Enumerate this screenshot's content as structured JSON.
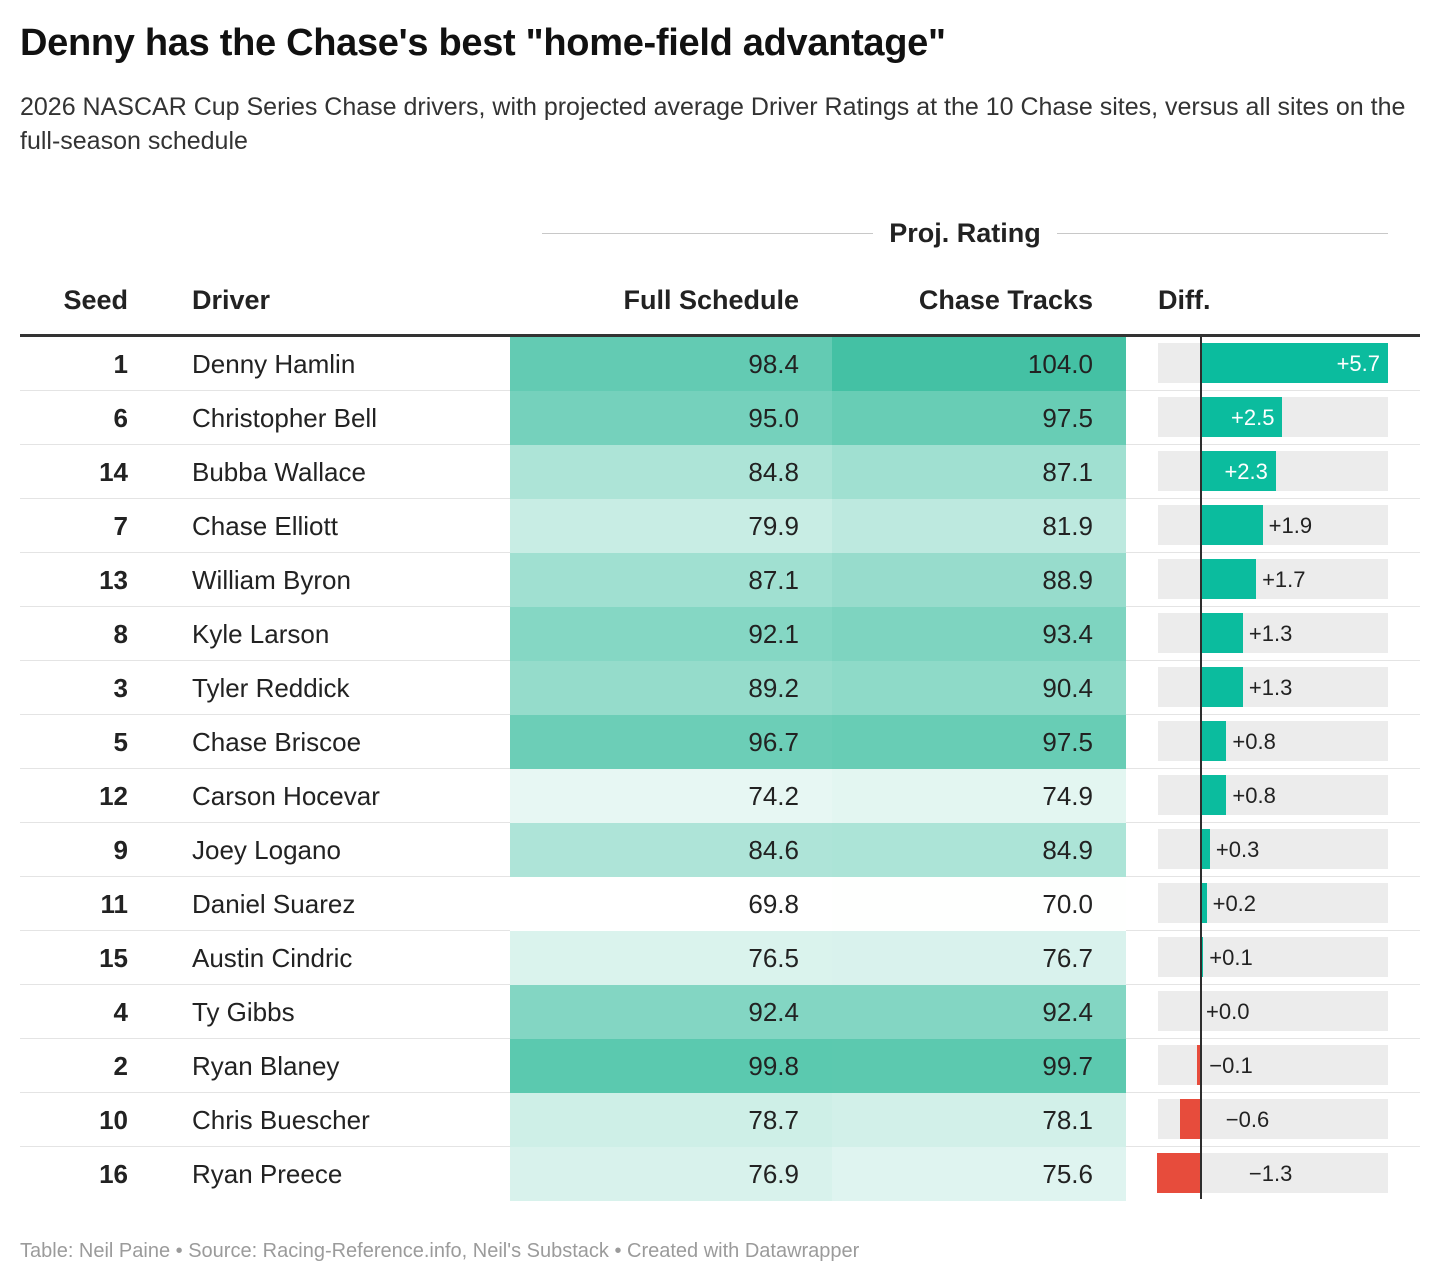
{
  "title": "Denny has the Chase's best \"home-field advantage\"",
  "subtitle": "2026 NASCAR Cup Series Chase drivers, with projected average Driver Ratings at the 10 Chase sites, versus all sites on the full-season schedule",
  "group_header": "Proj. Rating",
  "columns": {
    "seed": "Seed",
    "driver": "Driver",
    "full": "Full Schedule",
    "chase": "Chase Tracks",
    "diff": "Diff."
  },
  "footer": "Table: Neil Paine • Source: Racing-Reference.info, Neil's Substack • Created with Datawrapper",
  "colors": {
    "positive": "#0bbc9e",
    "negative": "#e74c3c",
    "track": "#ececec",
    "heat_low": "#ffffff",
    "heat_high": "#44c1a4"
  },
  "chart_data": {
    "type": "table",
    "title": "Denny has the Chase's best \"home-field advantage\"",
    "columns": [
      "Seed",
      "Driver",
      "Full Schedule",
      "Chase Tracks",
      "Diff."
    ],
    "heat_range": [
      69.8,
      104.0
    ],
    "diff_range": [
      -1.3,
      5.7
    ],
    "rows": [
      {
        "seed": "1",
        "driver": "Denny Hamlin",
        "full": 98.4,
        "chase": 104.0,
        "diff": 5.7,
        "diff_label": "+5.7"
      },
      {
        "seed": "6",
        "driver": "Christopher Bell",
        "full": 95.0,
        "chase": 97.5,
        "diff": 2.5,
        "diff_label": "+2.5"
      },
      {
        "seed": "14",
        "driver": "Bubba Wallace",
        "full": 84.8,
        "chase": 87.1,
        "diff": 2.3,
        "diff_label": "+2.3"
      },
      {
        "seed": "7",
        "driver": "Chase Elliott",
        "full": 79.9,
        "chase": 81.9,
        "diff": 1.9,
        "diff_label": "+1.9"
      },
      {
        "seed": "13",
        "driver": "William Byron",
        "full": 87.1,
        "chase": 88.9,
        "diff": 1.7,
        "diff_label": "+1.7"
      },
      {
        "seed": "8",
        "driver": "Kyle Larson",
        "full": 92.1,
        "chase": 93.4,
        "diff": 1.3,
        "diff_label": "+1.3"
      },
      {
        "seed": "3",
        "driver": "Tyler Reddick",
        "full": 89.2,
        "chase": 90.4,
        "diff": 1.3,
        "diff_label": "+1.3"
      },
      {
        "seed": "5",
        "driver": "Chase Briscoe",
        "full": 96.7,
        "chase": 97.5,
        "diff": 0.8,
        "diff_label": "+0.8"
      },
      {
        "seed": "12",
        "driver": "Carson Hocevar",
        "full": 74.2,
        "chase": 74.9,
        "diff": 0.8,
        "diff_label": "+0.8"
      },
      {
        "seed": "9",
        "driver": "Joey Logano",
        "full": 84.6,
        "chase": 84.9,
        "diff": 0.3,
        "diff_label": "+0.3"
      },
      {
        "seed": "11",
        "driver": "Daniel Suarez",
        "full": 69.8,
        "chase": 70.0,
        "diff": 0.2,
        "diff_label": "+0.2"
      },
      {
        "seed": "15",
        "driver": "Austin Cindric",
        "full": 76.5,
        "chase": 76.7,
        "diff": 0.1,
        "diff_label": "+0.1"
      },
      {
        "seed": "4",
        "driver": "Ty Gibbs",
        "full": 92.4,
        "chase": 92.4,
        "diff": 0.0,
        "diff_label": "+0.0"
      },
      {
        "seed": "2",
        "driver": "Ryan Blaney",
        "full": 99.8,
        "chase": 99.7,
        "diff": -0.1,
        "diff_label": "−0.1"
      },
      {
        "seed": "10",
        "driver": "Chris Buescher",
        "full": 78.7,
        "chase": 78.1,
        "diff": -0.6,
        "diff_label": "−0.6"
      },
      {
        "seed": "16",
        "driver": "Ryan Preece",
        "full": 76.9,
        "chase": 75.6,
        "diff": -1.3,
        "diff_label": "−1.3"
      }
    ]
  }
}
